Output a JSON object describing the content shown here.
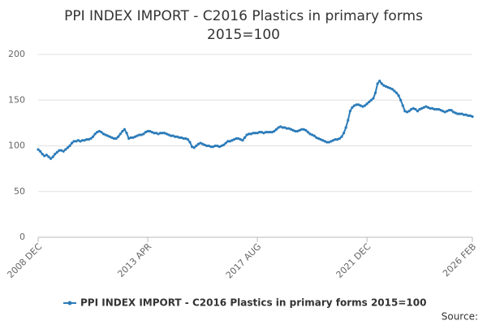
{
  "chart_data": {
    "type": "line",
    "title": [
      "PPI INDEX IMPORT - C2016 Plastics in primary forms",
      "2015=100"
    ],
    "source": "Source:",
    "categories": [
      "2008 DEC",
      null,
      null,
      null,
      null,
      null,
      null,
      null,
      null,
      null,
      null,
      null,
      null,
      null,
      null,
      null,
      null,
      null,
      null,
      null,
      null,
      null,
      null,
      null,
      null,
      null,
      null,
      null,
      null,
      null,
      null,
      null,
      null,
      null,
      null,
      null,
      null,
      null,
      null,
      null,
      null,
      null,
      null,
      null,
      null,
      null,
      null,
      null,
      null,
      null,
      null,
      null,
      "2013 APR",
      null,
      null,
      null,
      null,
      null,
      null,
      null,
      null,
      null,
      null,
      null,
      null,
      null,
      null,
      null,
      null,
      null,
      null,
      null,
      null,
      null,
      null,
      null,
      null,
      null,
      null,
      null,
      null,
      null,
      null,
      null,
      null,
      null,
      null,
      null,
      null,
      null,
      null,
      null,
      null,
      null,
      null,
      null,
      null,
      null,
      null,
      null,
      null,
      null,
      null,
      null,
      "2017 AUG",
      null,
      null,
      null,
      null,
      null,
      null,
      null,
      null,
      null,
      null,
      null,
      null,
      null,
      null,
      null,
      null,
      null,
      null,
      null,
      null,
      null,
      null,
      null,
      null,
      null,
      null,
      null,
      null,
      null,
      null,
      null,
      null,
      null,
      null,
      null,
      null,
      null,
      null,
      null,
      null,
      null,
      null,
      null,
      null,
      null,
      null,
      null,
      null,
      null,
      null,
      null,
      "2021 DEC",
      null,
      null,
      null,
      null,
      null,
      null,
      null,
      null,
      null,
      null,
      null,
      null,
      null,
      null,
      null,
      null,
      null,
      null,
      null,
      null,
      null,
      null,
      null,
      null,
      null,
      null,
      null,
      null,
      null,
      null,
      null,
      null,
      null,
      null,
      null,
      null,
      null,
      null,
      null,
      null,
      null,
      null,
      null,
      null,
      null,
      null,
      null,
      null,
      null,
      "2026 FEB"
    ],
    "series": [
      {
        "name": "PPI INDEX IMPORT - C2016 Plastics in primary forms 2015=100",
        "color": "#2b7bb9",
        "values": [
          96,
          94,
          91,
          89,
          90,
          88,
          86,
          88,
          91,
          93,
          95,
          95,
          94,
          96,
          98,
          100,
          103,
          105,
          105,
          106,
          105,
          106,
          106,
          107,
          107,
          108,
          110,
          113,
          115,
          116,
          115,
          113,
          112,
          111,
          110,
          109,
          108,
          108,
          110,
          113,
          116,
          118,
          114,
          108,
          109,
          109,
          110,
          111,
          112,
          112,
          113,
          115,
          116,
          116,
          115,
          114,
          114,
          113,
          114,
          114,
          114,
          113,
          112,
          111,
          111,
          110,
          110,
          109,
          109,
          108,
          108,
          107,
          104,
          99,
          98,
          100,
          102,
          103,
          102,
          101,
          100,
          100,
          99,
          99,
          100,
          100,
          99,
          100,
          101,
          103,
          105,
          105,
          106,
          107,
          108,
          108,
          107,
          106,
          109,
          112,
          113,
          113,
          114,
          114,
          114,
          115,
          115,
          114,
          115,
          115,
          115,
          115,
          116,
          118,
          120,
          121,
          120,
          120,
          119,
          119,
          118,
          117,
          116,
          116,
          117,
          118,
          118,
          117,
          115,
          113,
          112,
          111,
          109,
          108,
          107,
          106,
          105,
          104,
          104,
          105,
          106,
          107,
          107,
          108,
          110,
          114,
          120,
          128,
          138,
          142,
          144,
          145,
          145,
          144,
          143,
          144,
          146,
          148,
          150,
          152,
          158,
          168,
          171,
          168,
          166,
          165,
          164,
          163,
          162,
          160,
          158,
          155,
          150,
          144,
          138,
          137,
          138,
          140,
          141,
          140,
          138,
          140,
          141,
          142,
          143,
          142,
          141,
          141,
          140,
          140,
          140,
          139,
          138,
          137,
          138,
          139,
          139,
          137,
          136,
          135,
          135,
          135,
          134,
          134,
          133,
          133,
          132
        ]
      }
    ],
    "ylim": [
      0,
      200
    ],
    "yticks": [
      0,
      50,
      100,
      150,
      200
    ],
    "grid": true
  }
}
